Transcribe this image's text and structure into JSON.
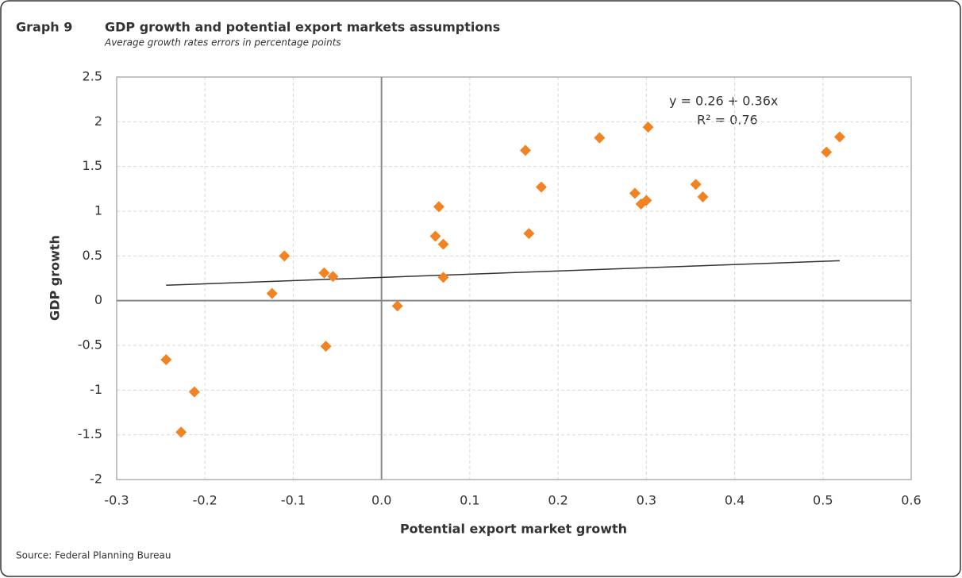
{
  "chart_data": {
    "type": "scatter",
    "label": "Graph 9",
    "title": "GDP growth and potential export markets assumptions",
    "subtitle": "Average growth rates errors in percentage points",
    "x_label": "Potential export market growth",
    "y_label": "GDP growth",
    "source": "Source: Federal Planning Bureau",
    "color": "#f28323",
    "grid": true,
    "x": [
      -0.244,
      -0.212,
      -0.227,
      -0.124,
      -0.11,
      -0.065,
      -0.055,
      -0.063,
      0.018,
      0.061,
      0.065,
      0.07,
      0.07,
      0.163,
      0.167,
      0.181,
      0.247,
      0.287,
      0.294,
      0.3,
      0.302,
      0.356,
      0.364,
      0.504,
      0.519
    ],
    "values": [
      -0.66,
      -1.02,
      -1.47,
      0.08,
      0.5,
      0.31,
      0.27,
      -0.51,
      -0.06,
      0.72,
      1.05,
      0.63,
      0.26,
      1.68,
      0.75,
      1.27,
      1.82,
      1.2,
      1.08,
      1.12,
      1.94,
      1.3,
      1.16,
      1.66,
      1.83
    ],
    "trendline": {
      "intercept": 0.26,
      "slope": 0.36,
      "color": "#333333",
      "label": "y =  0.26 + 0.36x",
      "r2_label": "R² = 0.76"
    },
    "xlim": [
      -0.3,
      0.6
    ],
    "xticks": [
      -0.3,
      -0.2,
      -0.1,
      {
        "value": 0,
        "label": "0.0"
      },
      0.1,
      0.2,
      0.3,
      0.4,
      0.5,
      0.6
    ],
    "ylim": [
      -2,
      2.5
    ],
    "yticks": [
      -2,
      -1.5,
      -1,
      -0.5,
      0,
      0.5,
      1,
      1.5,
      2,
      2.5
    ]
  }
}
